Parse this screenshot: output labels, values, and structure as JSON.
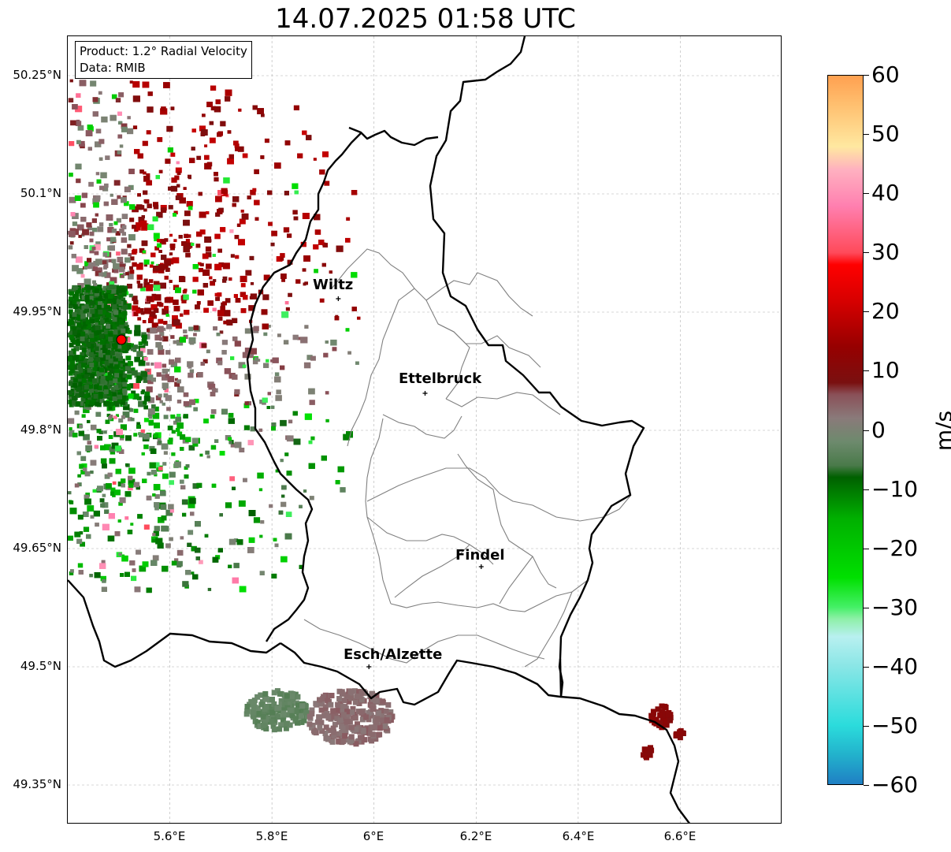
{
  "title": "14.07.2025 01:58 UTC",
  "info": {
    "product": "Product: 1.2° Radial Velocity",
    "source": "Data: RMIB"
  },
  "axes": {
    "y_ticks": [
      "50.25°N",
      "50.1°N",
      "49.95°N",
      "49.8°N",
      "49.65°N",
      "49.5°N",
      "49.35°N"
    ],
    "x_ticks": [
      "5.6°E",
      "5.8°E",
      "6°E",
      "6.2°E",
      "6.4°E",
      "6.6°E"
    ],
    "lon_range": [
      5.4,
      6.8
    ],
    "lat_range": [
      49.3,
      50.3
    ],
    "grid": true
  },
  "cities": [
    {
      "name": "Wiltz",
      "lon": 5.93,
      "lat": 49.967
    },
    {
      "name": "Ettelbruck",
      "lon": 6.1,
      "lat": 49.847
    },
    {
      "name": "Findel",
      "lon": 6.21,
      "lat": 49.627
    },
    {
      "name": "Esch/Alzette",
      "lon": 5.99,
      "lat": 49.5
    }
  ],
  "radar_site": {
    "lon": 5.505,
    "lat": 49.915,
    "color": "#ff0000"
  },
  "colorbar": {
    "unit": "m/s",
    "range": [
      -60,
      60
    ],
    "ticks": [
      "60",
      "50",
      "40",
      "30",
      "20",
      "10",
      "0",
      "−10",
      "−20",
      "−30",
      "−40",
      "−50",
      "−60"
    ],
    "tick_values": [
      60,
      50,
      40,
      30,
      20,
      10,
      0,
      -10,
      -20,
      -30,
      -40,
      -50,
      -60
    ],
    "stops": [
      {
        "v": -60,
        "c": "#1f7fc4"
      },
      {
        "v": -55,
        "c": "#22b2cc"
      },
      {
        "v": -50,
        "c": "#2bdcdc"
      },
      {
        "v": -40,
        "c": "#8ae6e6"
      },
      {
        "v": -35,
        "c": "#b8f0f0"
      },
      {
        "v": -32,
        "c": "#8ef0a8"
      },
      {
        "v": -30,
        "c": "#44f066"
      },
      {
        "v": -25,
        "c": "#00e000"
      },
      {
        "v": -15,
        "c": "#00b000"
      },
      {
        "v": -8,
        "c": "#006000"
      },
      {
        "v": -6,
        "c": "#4a7a4a"
      },
      {
        "v": -2,
        "c": "#6d8a6d"
      },
      {
        "v": 2,
        "c": "#8a7a7a"
      },
      {
        "v": 6,
        "c": "#8a5058"
      },
      {
        "v": 8,
        "c": "#7a1010"
      },
      {
        "v": 14,
        "c": "#960000"
      },
      {
        "v": 22,
        "c": "#d80000"
      },
      {
        "v": 28,
        "c": "#ff0000"
      },
      {
        "v": 30,
        "c": "#ff4a5a"
      },
      {
        "v": 38,
        "c": "#ff80b0"
      },
      {
        "v": 44,
        "c": "#ffb0c0"
      },
      {
        "v": 48,
        "c": "#ffe8a0"
      },
      {
        "v": 55,
        "c": "#ffc070"
      },
      {
        "v": 60,
        "c": "#ffa050"
      }
    ]
  }
}
